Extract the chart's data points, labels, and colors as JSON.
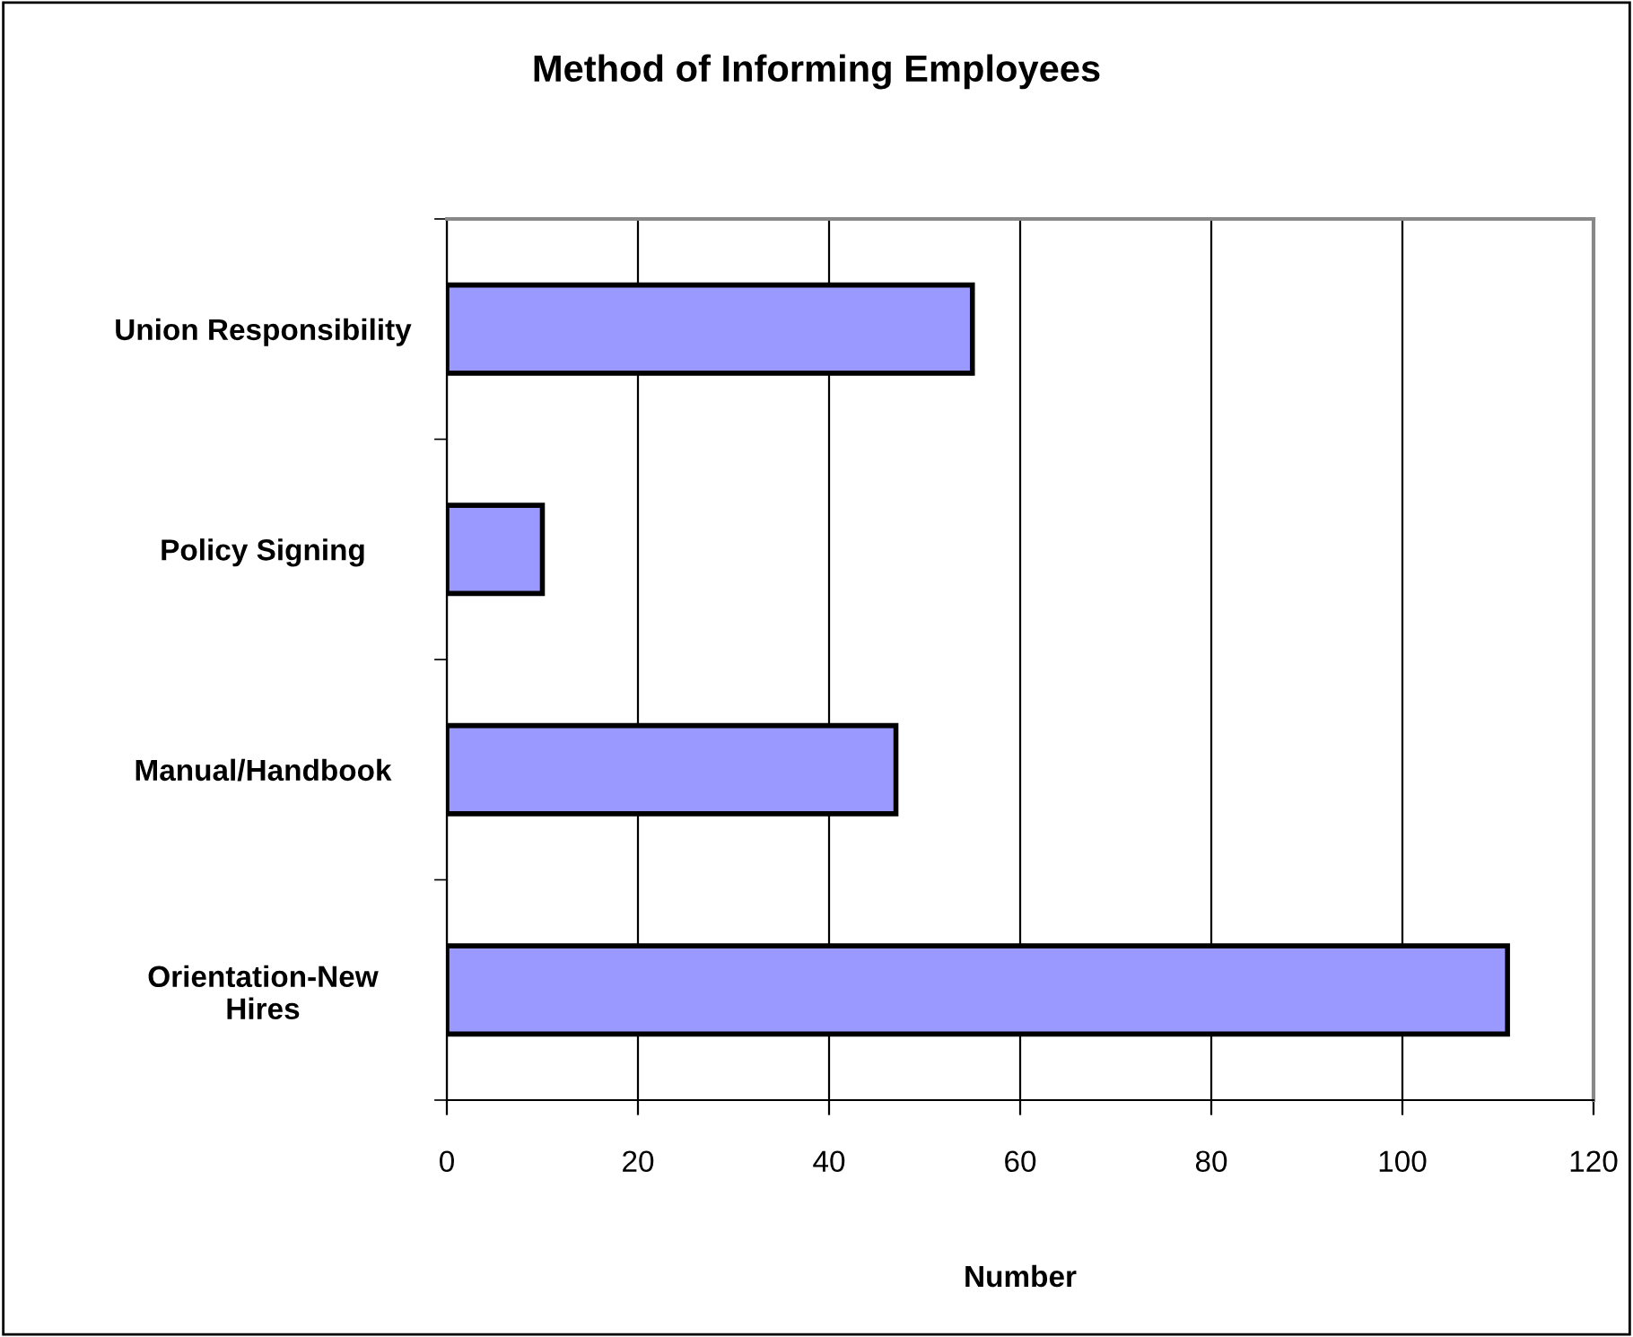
{
  "chart_data": {
    "type": "bar",
    "orientation": "horizontal",
    "title": "Method of Informing Employees",
    "xlabel": "Number",
    "categories": [
      "Union Responsibility",
      "Policy Signing",
      "Manual/Handbook",
      "Orientation-New\nHires"
    ],
    "values": [
      55,
      10,
      47,
      111
    ],
    "color": "#9999ff",
    "xlim": [
      0,
      120
    ],
    "xticks": [
      0,
      20,
      40,
      60,
      80,
      100,
      120
    ],
    "grid": "x",
    "legend": false
  }
}
